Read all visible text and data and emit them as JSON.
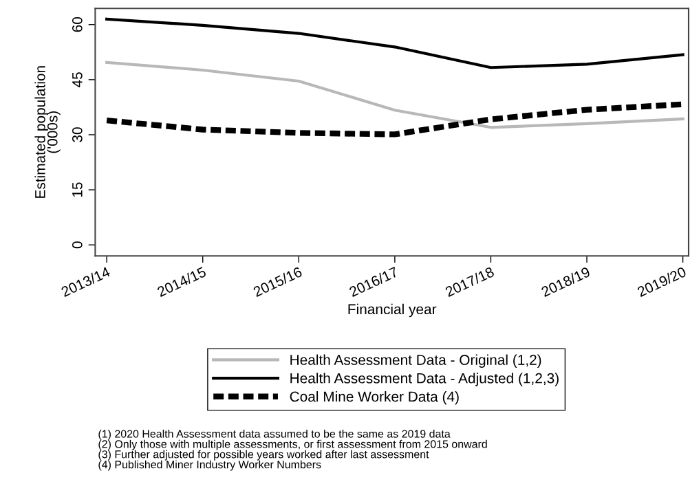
{
  "chart_data": {
    "type": "line",
    "xlabel": "Financial year",
    "ylabel": "Estimated population\n('000s)",
    "categories": [
      "2013/14",
      "2014/15",
      "2015/16",
      "2016/17",
      "2017/18",
      "2018/19",
      "2019/20"
    ],
    "series": [
      {
        "name": "Health Assessment Data - Original (1,2)",
        "color": "#b8b8b8",
        "line_style": "solid",
        "values": [
          49.7,
          47.6,
          44.6,
          36.7,
          32.0,
          33.0,
          34.3
        ]
      },
      {
        "name": "Health Assessment Data - Adjusted (1,2,3)",
        "color": "#000000",
        "line_style": "solid",
        "values": [
          61.5,
          59.8,
          57.6,
          53.9,
          48.3,
          49.2,
          51.8
        ]
      },
      {
        "name": "Coal Mine Worker Data (4)",
        "color": "#000000",
        "line_style": "dashed",
        "values": [
          33.9,
          31.4,
          30.5,
          30.1,
          34.2,
          36.8,
          38.3
        ]
      }
    ],
    "ylim": [
      -3,
      64.4
    ],
    "yticks": [
      0,
      15,
      30,
      45,
      60
    ],
    "grid": false,
    "legend": "bottom",
    "marker": "none",
    "annotations": [
      "(1) 2020 Health Assessment data assumed to be the same as 2019 data\n(2) Only those with multiple assessments, or first assessment from 2015 onward\n(3) Further adjusted for possible years worked after last assessment\n(4) Published Miner Industry Worker Numbers"
    ]
  }
}
